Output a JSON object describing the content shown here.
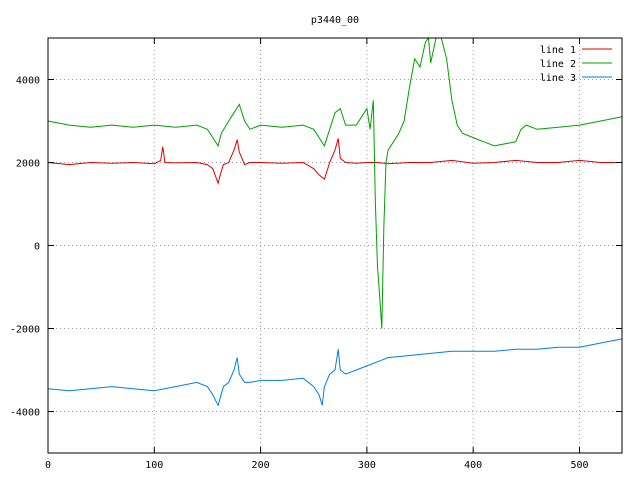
{
  "chart_data": {
    "type": "line",
    "title": "p3440_00",
    "xlabel": "",
    "ylabel": "",
    "xlim": [
      0,
      540
    ],
    "ylim": [
      -5000,
      5000
    ],
    "xticks": [
      0,
      100,
      200,
      300,
      400,
      500
    ],
    "yticks": [
      -4000,
      -2000,
      0,
      2000,
      4000
    ],
    "grid": true,
    "legend_position": "top-right",
    "series": [
      {
        "name": "line 1",
        "color": "#e00000",
        "x": [
          0,
          20,
          40,
          60,
          80,
          100,
          106,
          108,
          110,
          120,
          140,
          150,
          155,
          160,
          162,
          165,
          170,
          175,
          178,
          180,
          185,
          190,
          200,
          220,
          240,
          250,
          255,
          260,
          265,
          270,
          273,
          275,
          280,
          290,
          300,
          310,
          320,
          340,
          360,
          380,
          400,
          420,
          440,
          460,
          480,
          500,
          520,
          540
        ],
        "y": [
          2000,
          1950,
          2000,
          1980,
          2000,
          1970,
          2050,
          2380,
          2000,
          1990,
          2000,
          1950,
          1850,
          1500,
          1700,
          1950,
          2000,
          2300,
          2550,
          2250,
          1950,
          2000,
          2000,
          1980,
          2000,
          1850,
          1700,
          1600,
          2000,
          2300,
          2580,
          2100,
          2000,
          1980,
          2000,
          2000,
          1970,
          2000,
          2000,
          2050,
          1980,
          2000,
          2050,
          2000,
          2000,
          2050,
          2000,
          2000
        ]
      },
      {
        "name": "line 2",
        "color": "#00a000",
        "x": [
          0,
          20,
          40,
          60,
          80,
          100,
          120,
          140,
          150,
          155,
          160,
          163,
          170,
          175,
          180,
          185,
          190,
          200,
          220,
          240,
          250,
          255,
          260,
          265,
          270,
          275,
          280,
          290,
          295,
          300,
          303,
          306,
          308,
          310,
          312,
          314,
          316,
          318,
          320,
          325,
          330,
          335,
          340,
          345,
          350,
          355,
          358,
          360,
          365,
          370,
          375,
          380,
          385,
          390,
          400,
          410,
          420,
          430,
          440,
          445,
          450,
          460,
          480,
          500,
          520,
          540
        ],
        "y": [
          3000,
          2900,
          2850,
          2900,
          2850,
          2900,
          2850,
          2900,
          2800,
          2600,
          2400,
          2700,
          3000,
          3200,
          3400,
          3000,
          2800,
          2900,
          2850,
          2900,
          2800,
          2600,
          2400,
          2800,
          3200,
          3300,
          2900,
          2900,
          3100,
          3300,
          2800,
          3500,
          1000,
          -500,
          -1200,
          -2000,
          500,
          2000,
          2300,
          2500,
          2700,
          3000,
          3800,
          4500,
          4300,
          4900,
          5000,
          4400,
          5000,
          5000,
          4500,
          3500,
          2900,
          2700,
          2600,
          2500,
          2400,
          2450,
          2500,
          2800,
          2900,
          2800,
          2850,
          2900,
          3000,
          3100
        ]
      },
      {
        "name": "line 3",
        "color": "#0080e0",
        "x": [
          0,
          20,
          40,
          60,
          80,
          100,
          120,
          140,
          150,
          155,
          160,
          165,
          170,
          175,
          178,
          180,
          185,
          190,
          200,
          220,
          240,
          250,
          255,
          258,
          260,
          265,
          270,
          273,
          275,
          280,
          290,
          300,
          320,
          340,
          360,
          380,
          400,
          420,
          440,
          460,
          480,
          500,
          520,
          540
        ],
        "y": [
          -3450,
          -3500,
          -3450,
          -3400,
          -3450,
          -3500,
          -3400,
          -3300,
          -3400,
          -3600,
          -3850,
          -3400,
          -3300,
          -3000,
          -2700,
          -3100,
          -3300,
          -3300,
          -3250,
          -3250,
          -3200,
          -3400,
          -3600,
          -3850,
          -3400,
          -3100,
          -3000,
          -2500,
          -3000,
          -3100,
          -3000,
          -2900,
          -2700,
          -2650,
          -2600,
          -2550,
          -2550,
          -2550,
          -2500,
          -2500,
          -2450,
          -2450,
          -2350,
          -2250
        ]
      }
    ]
  }
}
